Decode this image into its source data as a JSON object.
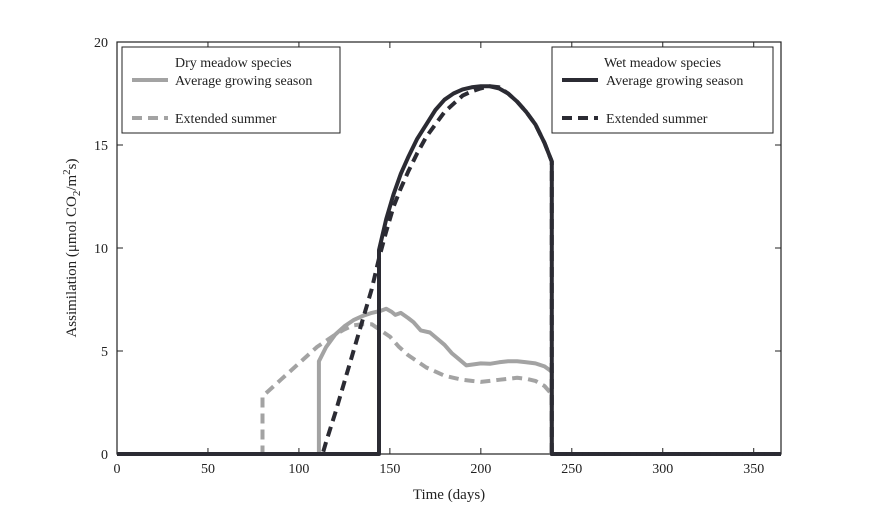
{
  "chart_data": {
    "type": "line",
    "xlabel": "Time (days)",
    "ylabel": {
      "prefix": "Assimilation (μmol CO",
      "sub": "2",
      "mid": "/m",
      "sup": "2",
      "suffix": "s)"
    },
    "xlim": [
      0,
      365
    ],
    "ylim": [
      0,
      20
    ],
    "xticks": [
      0,
      50,
      100,
      150,
      200,
      250,
      300,
      350
    ],
    "yticks": [
      0,
      5,
      10,
      15,
      20
    ],
    "grid": false,
    "legends": [
      {
        "placement": "top-left",
        "title": "Dry meadow species",
        "entries": [
          "Average growing season",
          "Extended summer"
        ]
      },
      {
        "placement": "top-right",
        "title": "Wet meadow species",
        "entries": [
          "Average growing season",
          "Extended summer"
        ]
      }
    ],
    "series": [
      {
        "name": "Average growing season",
        "group": "Dry meadow species",
        "color": "#a3a3a3",
        "dash": "solid",
        "points": [
          [
            0,
            0
          ],
          [
            111,
            0
          ],
          [
            111,
            4.5
          ],
          [
            115,
            5.2
          ],
          [
            120,
            5.8
          ],
          [
            125,
            6.2
          ],
          [
            130,
            6.5
          ],
          [
            135,
            6.7
          ],
          [
            140,
            6.85
          ],
          [
            145,
            6.95
          ],
          [
            148,
            7.05
          ],
          [
            151,
            6.9
          ],
          [
            153,
            6.75
          ],
          [
            156,
            6.85
          ],
          [
            160,
            6.6
          ],
          [
            163,
            6.4
          ],
          [
            167,
            6.0
          ],
          [
            172,
            5.9
          ],
          [
            176,
            5.6
          ],
          [
            180,
            5.3
          ],
          [
            184,
            4.9
          ],
          [
            188,
            4.6
          ],
          [
            192,
            4.3
          ],
          [
            196,
            4.35
          ],
          [
            200,
            4.4
          ],
          [
            205,
            4.38
          ],
          [
            210,
            4.45
          ],
          [
            215,
            4.5
          ],
          [
            220,
            4.5
          ],
          [
            225,
            4.45
          ],
          [
            230,
            4.4
          ],
          [
            235,
            4.25
          ],
          [
            239,
            4.0
          ],
          [
            239,
            0
          ],
          [
            365,
            0
          ]
        ]
      },
      {
        "name": "Extended summer",
        "group": "Dry meadow species",
        "color": "#a3a3a3",
        "dash": "dashed",
        "points": [
          [
            0,
            0
          ],
          [
            80,
            0
          ],
          [
            80,
            2.8
          ],
          [
            85,
            3.2
          ],
          [
            90,
            3.6
          ],
          [
            95,
            4.0
          ],
          [
            100,
            4.4
          ],
          [
            105,
            4.8
          ],
          [
            110,
            5.2
          ],
          [
            115,
            5.5
          ],
          [
            120,
            5.8
          ],
          [
            125,
            6.05
          ],
          [
            130,
            6.25
          ],
          [
            135,
            6.3
          ],
          [
            140,
            6.3
          ],
          [
            145,
            6.0
          ],
          [
            150,
            5.7
          ],
          [
            155,
            5.2
          ],
          [
            160,
            4.8
          ],
          [
            165,
            4.5
          ],
          [
            170,
            4.2
          ],
          [
            175,
            4.0
          ],
          [
            180,
            3.8
          ],
          [
            185,
            3.7
          ],
          [
            190,
            3.6
          ],
          [
            195,
            3.55
          ],
          [
            200,
            3.5
          ],
          [
            205,
            3.55
          ],
          [
            210,
            3.6
          ],
          [
            215,
            3.65
          ],
          [
            220,
            3.7
          ],
          [
            225,
            3.65
          ],
          [
            230,
            3.55
          ],
          [
            235,
            3.3
          ],
          [
            239,
            2.9
          ],
          [
            239,
            0
          ],
          [
            365,
            0
          ]
        ]
      },
      {
        "name": "Average growing season",
        "group": "Wet meadow species",
        "color": "#2b2b33",
        "dash": "solid",
        "points": [
          [
            0,
            0
          ],
          [
            144,
            0
          ],
          [
            144,
            9.9
          ],
          [
            148,
            11.4
          ],
          [
            152,
            12.6
          ],
          [
            156,
            13.6
          ],
          [
            160,
            14.4
          ],
          [
            165,
            15.3
          ],
          [
            170,
            16.0
          ],
          [
            175,
            16.7
          ],
          [
            180,
            17.2
          ],
          [
            185,
            17.5
          ],
          [
            190,
            17.7
          ],
          [
            195,
            17.8
          ],
          [
            200,
            17.85
          ],
          [
            205,
            17.85
          ],
          [
            210,
            17.75
          ],
          [
            215,
            17.5
          ],
          [
            220,
            17.1
          ],
          [
            225,
            16.6
          ],
          [
            230,
            16.0
          ],
          [
            235,
            15.1
          ],
          [
            239,
            14.2
          ],
          [
            239,
            0
          ],
          [
            365,
            0
          ]
        ]
      },
      {
        "name": "Extended summer",
        "group": "Wet meadow species",
        "color": "#2b2b33",
        "dash": "dashed",
        "points": [
          [
            0,
            0
          ],
          [
            113,
            0
          ],
          [
            115,
            0.6
          ],
          [
            120,
            2.0
          ],
          [
            125,
            3.5
          ],
          [
            130,
            5.0
          ],
          [
            135,
            6.5
          ],
          [
            140,
            8.0
          ],
          [
            144,
            9.5
          ],
          [
            148,
            10.8
          ],
          [
            152,
            12.0
          ],
          [
            156,
            12.9
          ],
          [
            160,
            13.7
          ],
          [
            165,
            14.6
          ],
          [
            170,
            15.4
          ],
          [
            175,
            16.0
          ],
          [
            180,
            16.6
          ],
          [
            185,
            17.0
          ],
          [
            190,
            17.4
          ],
          [
            195,
            17.6
          ],
          [
            200,
            17.75
          ],
          [
            205,
            17.85
          ],
          [
            210,
            17.8
          ],
          [
            215,
            17.5
          ],
          [
            220,
            17.1
          ],
          [
            225,
            16.6
          ],
          [
            230,
            16.0
          ],
          [
            235,
            15.1
          ],
          [
            239,
            14.2
          ],
          [
            239,
            0
          ],
          [
            365,
            0
          ]
        ]
      }
    ]
  }
}
